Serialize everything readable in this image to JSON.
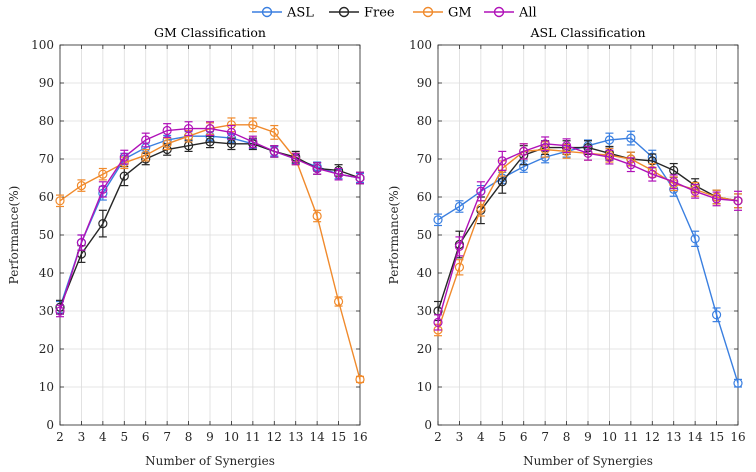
{
  "legend": [
    {
      "name": "ASL",
      "color": "#3a7fe0"
    },
    {
      "name": "Free",
      "color": "#262626"
    },
    {
      "name": "GM",
      "color": "#f08a2c"
    },
    {
      "name": "All",
      "color": "#b011b8"
    }
  ],
  "chart_data": [
    {
      "type": "line",
      "title": "GM Classification",
      "xlabel": "Number of Synergies",
      "ylabel": "Performance(%)",
      "x": [
        2,
        3,
        4,
        5,
        6,
        7,
        8,
        9,
        10,
        11,
        12,
        13,
        14,
        15,
        16
      ],
      "xlim": [
        2,
        16
      ],
      "ylim": [
        0,
        100
      ],
      "yticks": [
        0,
        10,
        20,
        30,
        40,
        50,
        60,
        70,
        80,
        90,
        100
      ],
      "grid": "on",
      "series": [
        {
          "name": "ASL",
          "values": [
            31,
            48,
            61,
            70,
            73,
            75,
            76,
            76,
            75.5,
            74,
            72,
            70,
            68,
            66,
            65
          ],
          "err": [
            1.5,
            2,
            1.8,
            1.5,
            1.2,
            1.2,
            1.2,
            1.2,
            1.2,
            1.2,
            1.2,
            1.2,
            1.2,
            1.2,
            1.2
          ]
        },
        {
          "name": "Free",
          "values": [
            31,
            45,
            53,
            65.5,
            70,
            72.5,
            73.5,
            74.5,
            74,
            74,
            72,
            70.5,
            67.5,
            67,
            65
          ],
          "err": [
            1.8,
            2.2,
            3.5,
            2.5,
            1.5,
            1.5,
            1.5,
            1.5,
            1.5,
            1.5,
            1.5,
            1.5,
            1.5,
            1.5,
            1.5
          ]
        },
        {
          "name": "GM",
          "values": [
            59,
            63,
            66,
            69,
            71,
            74,
            76,
            78,
            79,
            79,
            77,
            70,
            55,
            32.5,
            12
          ],
          "err": [
            1.5,
            1.5,
            1.5,
            1.5,
            1.5,
            1.5,
            1.5,
            1.5,
            1.8,
            1.8,
            1.8,
            1.5,
            1.5,
            1.2,
            0.8
          ]
        },
        {
          "name": "All",
          "values": [
            30,
            48,
            62,
            70.5,
            75,
            77.5,
            78,
            78,
            77,
            74.5,
            72,
            70,
            67.5,
            66,
            65
          ],
          "err": [
            1.5,
            2,
            2,
            1.8,
            1.8,
            1.8,
            1.8,
            1.8,
            1.8,
            1.5,
            1.5,
            1.5,
            1.5,
            1.5,
            1.5
          ]
        }
      ]
    },
    {
      "type": "line",
      "title": "ASL Classification",
      "xlabel": "Number of Synergies",
      "ylabel": "Performance(%)",
      "x": [
        2,
        3,
        4,
        5,
        6,
        7,
        8,
        9,
        10,
        11,
        12,
        13,
        14,
        15,
        16
      ],
      "xlim": [
        2,
        16
      ],
      "ylim": [
        0,
        100
      ],
      "yticks": [
        0,
        10,
        20,
        30,
        40,
        50,
        60,
        70,
        80,
        90,
        100
      ],
      "grid": "on",
      "series": [
        {
          "name": "ASL",
          "values": [
            54,
            57.5,
            61.5,
            65,
            68,
            70.5,
            72,
            73.5,
            75,
            75.5,
            70.5,
            62,
            49,
            29,
            11
          ],
          "err": [
            1.5,
            1.5,
            1.5,
            1.5,
            1.5,
            1.5,
            1.5,
            1.5,
            1.8,
            1.8,
            1.8,
            1.8,
            2,
            1.8,
            1
          ]
        },
        {
          "name": "Free",
          "values": [
            30,
            47.5,
            56.5,
            64,
            71,
            73,
            73,
            73,
            71.5,
            70,
            69.5,
            67,
            63,
            60,
            59
          ],
          "err": [
            2.5,
            3.5,
            3.5,
            3,
            2.5,
            1.8,
            1.8,
            1.8,
            1.8,
            1.8,
            1.8,
            1.8,
            1.8,
            1.8,
            1.8
          ]
        },
        {
          "name": "GM",
          "values": [
            25,
            41.5,
            57,
            67.5,
            72,
            72.5,
            72,
            71.5,
            71,
            70,
            67,
            63.5,
            62,
            60,
            59
          ],
          "err": [
            1.5,
            2,
            2,
            2,
            2,
            2,
            1.8,
            1.8,
            1.8,
            1.8,
            1.8,
            1.8,
            1.8,
            1.8,
            1.8
          ]
        },
        {
          "name": "All",
          "values": [
            27,
            47,
            61.5,
            69.5,
            72,
            74,
            73.5,
            71.5,
            70.5,
            68.5,
            66,
            64,
            61.5,
            59.5,
            59
          ],
          "err": [
            2,
            2.5,
            2.5,
            2.5,
            2,
            1.8,
            1.8,
            1.8,
            1.8,
            1.8,
            1.8,
            1.8,
            1.8,
            1.8,
            2.5
          ]
        }
      ]
    }
  ]
}
